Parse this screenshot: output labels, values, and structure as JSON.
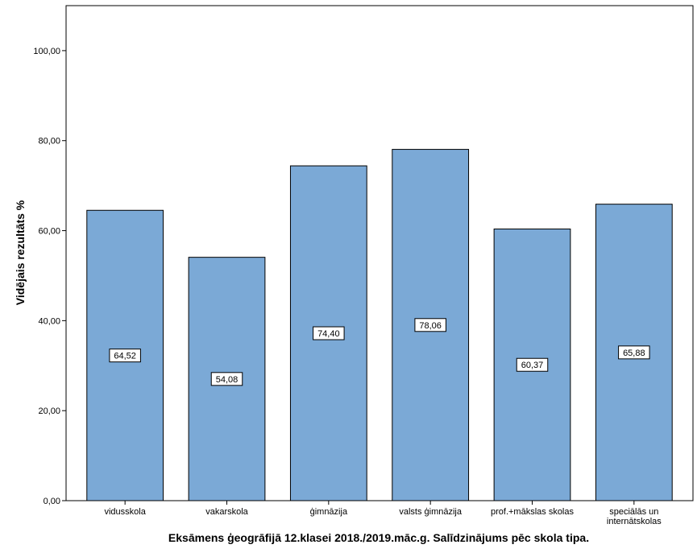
{
  "chart_data": {
    "type": "bar",
    "categories": [
      [
        "vidusskola"
      ],
      [
        "vakarskola"
      ],
      [
        "ģimnāzija"
      ],
      [
        "valsts ģimnāzija"
      ],
      [
        "prof.+mākslas skolas"
      ],
      [
        "speciālās un",
        "internātskolas"
      ]
    ],
    "values": [
      64.52,
      54.08,
      74.4,
      78.06,
      60.37,
      65.88
    ],
    "data_labels": [
      "64,52",
      "54,08",
      "74,40",
      "78,06",
      "60,37",
      "65,88"
    ],
    "xlabel": "Eksāmens ģeogrāfijā 12.klasei 2018./2019.māc.g. Salīdzinājums pēc skola tipa.",
    "ylabel": "Vidējais rezultāts %",
    "ylim": [
      0,
      110
    ],
    "yticks": [
      0,
      20,
      40,
      60,
      80,
      100
    ],
    "ytick_labels": [
      "0,00",
      "20,00",
      "40,00",
      "60,00",
      "80,00",
      "100,00"
    ],
    "grid": false,
    "bar_color": "#7ba9d6",
    "bar_edge_color": "#000000"
  }
}
